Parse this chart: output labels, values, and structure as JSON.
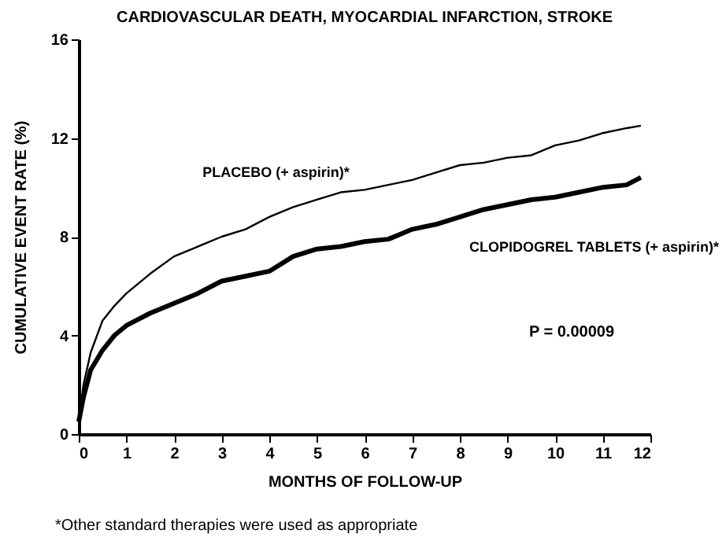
{
  "chart_data": {
    "type": "line",
    "title": "CARDIOVASCULAR DEATH, MYOCARDIAL INFARCTION, STROKE",
    "xlabel": "MONTHS OF FOLLOW-UP",
    "ylabel": "CUMULATIVE EVENT RATE (%)",
    "xlim": [
      0,
      12
    ],
    "ylim": [
      0,
      16
    ],
    "xticks": [
      0,
      1,
      2,
      3,
      4,
      5,
      6,
      7,
      8,
      9,
      10,
      11,
      12
    ],
    "yticks": [
      0,
      4,
      8,
      12,
      16
    ],
    "grid": false,
    "marker": "none",
    "line_style": "solid",
    "series": [
      {
        "name": "PLACEBO (+ aspirin)*",
        "color": "#000000",
        "x": [
          0,
          0.1,
          0.25,
          0.5,
          0.75,
          1,
          1.5,
          2,
          2.5,
          3,
          3.5,
          4,
          4.5,
          5,
          5.5,
          6,
          6.5,
          7,
          7.5,
          8,
          8.5,
          9,
          9.5,
          10,
          10.5,
          11,
          11.5,
          11.8
        ],
        "values": [
          0.5,
          2.0,
          3.3,
          4.6,
          5.2,
          5.7,
          6.5,
          7.2,
          7.6,
          8.0,
          8.3,
          8.8,
          9.2,
          9.5,
          9.8,
          9.9,
          10.1,
          10.3,
          10.6,
          10.9,
          11.0,
          11.2,
          11.3,
          11.7,
          11.9,
          12.2,
          12.4,
          12.5
        ]
      },
      {
        "name": "CLOPIDOGREL TABLETS (+ aspirin)*",
        "color": "#000000",
        "x": [
          0,
          0.1,
          0.25,
          0.5,
          0.75,
          1,
          1.5,
          2,
          2.5,
          3,
          3.5,
          4,
          4.5,
          5,
          5.5,
          6,
          6.5,
          7,
          7.5,
          8,
          8.5,
          9,
          9.5,
          10,
          10.5,
          11,
          11.5,
          11.8
        ],
        "values": [
          0.5,
          1.5,
          2.6,
          3.4,
          4.0,
          4.4,
          4.9,
          5.3,
          5.7,
          6.2,
          6.4,
          6.6,
          7.2,
          7.5,
          7.6,
          7.8,
          7.9,
          8.3,
          8.5,
          8.8,
          9.1,
          9.3,
          9.5,
          9.6,
          9.8,
          10.0,
          10.1,
          10.4
        ]
      }
    ],
    "annotations": [
      "P = 0.00009",
      "*Other standard therapies were used as appropriate"
    ]
  }
}
